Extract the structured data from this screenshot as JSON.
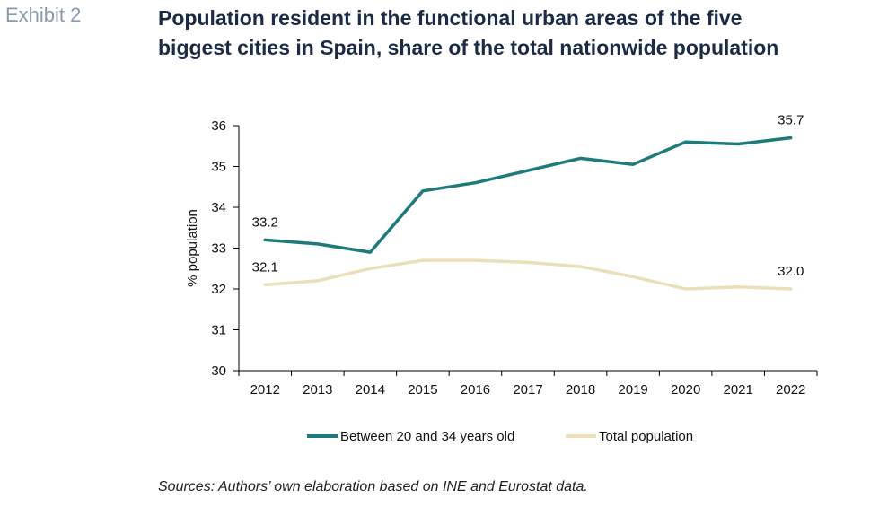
{
  "header": {
    "exhibit_label": "Exhibit 2",
    "title_line1": "Population resident in the functional urban areas of the five",
    "title_line2": "biggest cities in Spain, share of the total nationwide population"
  },
  "footer": {
    "source": "Sources: Authors’ own elaboration based on INE and Eurostat data."
  },
  "chart_data": {
    "type": "line",
    "title": "Population resident in the functional urban areas of the five biggest cities in Spain, share of the total nationwide population",
    "xlabel": "",
    "ylabel": "% population",
    "ylim": [
      30,
      36
    ],
    "yticks": [
      30,
      31,
      32,
      33,
      34,
      35,
      36
    ],
    "grid": false,
    "legend_position": "bottom",
    "categories": [
      "2012",
      "2013",
      "2014",
      "2015",
      "2016",
      "2017",
      "2018",
      "2019",
      "2020",
      "2021",
      "2022"
    ],
    "series": [
      {
        "name": "Between 20 and 34 years old",
        "color": "#1f7b7b",
        "values": [
          33.2,
          33.1,
          32.9,
          34.4,
          34.6,
          34.9,
          35.2,
          35.05,
          35.6,
          35.55,
          35.7
        ]
      },
      {
        "name": "Total population",
        "color": "#eadfb8",
        "values": [
          32.1,
          32.2,
          32.5,
          32.7,
          32.7,
          32.65,
          32.55,
          32.3,
          32.0,
          32.05,
          32.0
        ]
      }
    ],
    "annotations": [
      {
        "series": 0,
        "index": 0,
        "text": "33.2"
      },
      {
        "series": 0,
        "index": 10,
        "text": "35.7"
      },
      {
        "series": 1,
        "index": 0,
        "text": "32.1"
      },
      {
        "series": 1,
        "index": 10,
        "text": "32.0"
      }
    ]
  }
}
